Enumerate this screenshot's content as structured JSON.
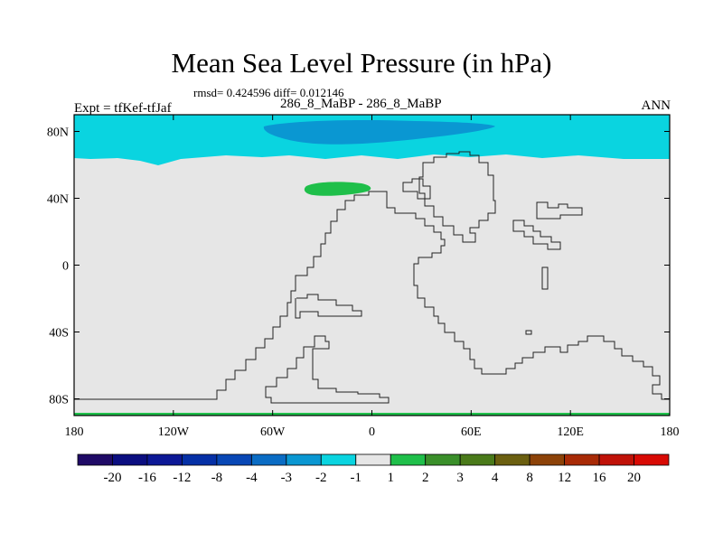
{
  "chart_data": {
    "type": "heatmap",
    "title": "Mean Sea Level Pressure (in hPa)",
    "stats_line": "rmsd= 0.424596 diff= 0.012146",
    "runs_line": "286_8_MaBP - 286_8_MaBP",
    "experiment": "Expt = tfKef-tfJaf",
    "season": "ANN",
    "x_ticks": [
      "180",
      "120W",
      "60W",
      "0",
      "60E",
      "120E",
      "180"
    ],
    "x_tick_values": [
      -180,
      -120,
      -60,
      0,
      60,
      120,
      180
    ],
    "y_ticks": [
      "80N",
      "40N",
      "0",
      "40S",
      "80S"
    ],
    "y_tick_values": [
      80,
      40,
      0,
      -40,
      -80
    ],
    "xlim": [
      -180,
      180
    ],
    "ylim": [
      -90,
      90
    ],
    "field_summary": {
      "background_level": "-1 to 1",
      "north_band_lat_min": 65,
      "north_band_level": "-2 to -1",
      "north_core_level": "-3 to -2",
      "green_patch_level": "1 to 2"
    },
    "colorbar": {
      "labels": [
        "-20",
        "-16",
        "-12",
        "-8",
        "-4",
        "-3",
        "-2",
        "-1",
        "1",
        "2",
        "3",
        "4",
        "8",
        "12",
        "16",
        "20"
      ],
      "colors": [
        "#1f0a66",
        "#0b0e80",
        "#0c1896",
        "#0530a6",
        "#0847b5",
        "#0a6cc4",
        "#0a97d2",
        "#0ad4e0",
        "#e6e6e6",
        "#1fbf4a",
        "#3a8f2a",
        "#4a7a1a",
        "#6b5f10",
        "#8c4208",
        "#a82a06",
        "#c01208",
        "#d80a04"
      ]
    }
  }
}
